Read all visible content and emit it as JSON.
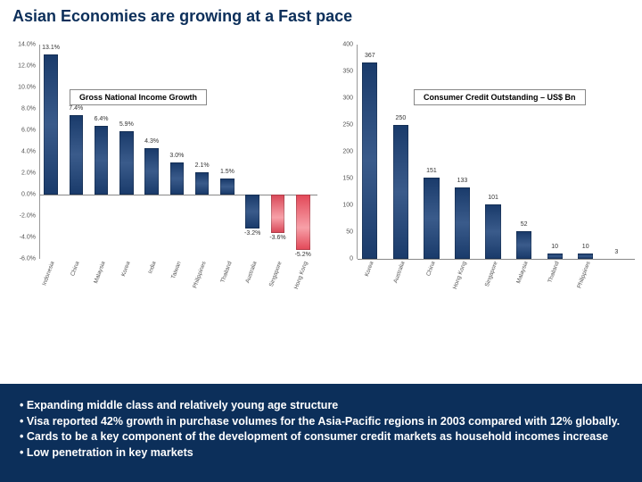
{
  "title": "Asian Economies are growing at a Fast pace",
  "chart1": {
    "title": "Gross National Income Growth",
    "type": "bar",
    "ylim": [
      -6,
      14
    ],
    "ytick_step": 2,
    "y_suffix": "%",
    "bar_color": "#1a3b6b",
    "highlight_color_1": "#d94a5a",
    "highlight_color_2": "#e34a5a",
    "categories": [
      "Indonesia",
      "China",
      "Malaysia",
      "Korea",
      "India",
      "Taiwan",
      "Philippines",
      "Thailand",
      "Australia",
      "Singapore",
      "Hong Kong"
    ],
    "values": [
      13.1,
      7.4,
      6.4,
      5.9,
      4.3,
      3.0,
      2.1,
      1.5,
      -3.2,
      -3.6,
      -5.2
    ],
    "highlight_idx": [
      9,
      10
    ],
    "data_label_suffix": "%"
  },
  "chart2": {
    "title": "Consumer Credit Outstanding – US$ Bn",
    "type": "bar",
    "ylim": [
      0,
      400
    ],
    "ytick_step": 50,
    "bar_color": "#1a3b6b",
    "categories": [
      "Korea",
      "Australia",
      "China",
      "Hong Kong",
      "Singapore",
      "Malaysia",
      "Thailand",
      "Philippines"
    ],
    "values": [
      367,
      250,
      151,
      133,
      101,
      52,
      10,
      10
    ],
    "extra_label": {
      "text": "3",
      "after_idx": 7
    }
  },
  "bullets": [
    "Expanding middle class and relatively young age structure",
    "Visa reported 42% growth in purchase volumes for the Asia-Pacific regions in 2003 compared with 12% globally.",
    "Cards to be a key component of the development of consumer credit markets as household incomes increase",
    "Low penetration in key markets"
  ],
  "colors": {
    "footer_bg": "#0c2f5a",
    "title_color": "#0c2f5a"
  }
}
